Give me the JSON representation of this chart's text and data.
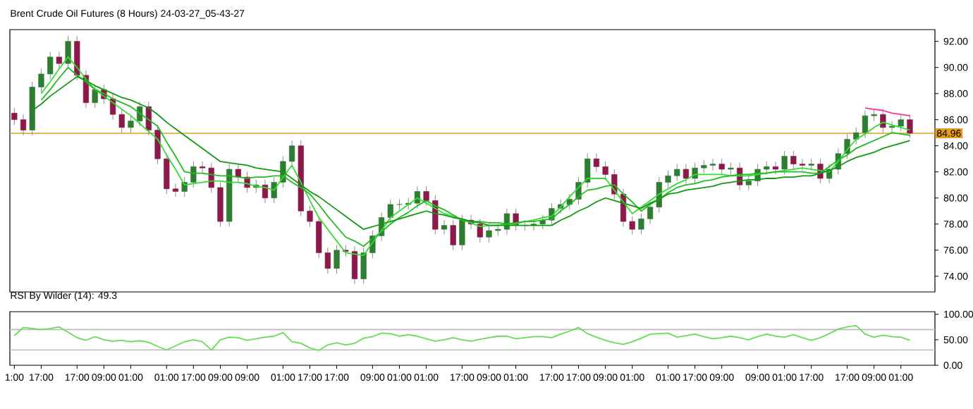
{
  "chart_data": [
    {
      "type": "candlestick",
      "title": "Brent Crude Oil Futures (8 Hours) 24-03-27_05-43-27",
      "categories": [
        null,
        null,
        null,
        null,
        null,
        null,
        null,
        null,
        null,
        null,
        null,
        null,
        null,
        null,
        null,
        null,
        null,
        null,
        null,
        null,
        null,
        null,
        null,
        null,
        null,
        null,
        null,
        null,
        null,
        null,
        null,
        null,
        null,
        null,
        null,
        null,
        null,
        null,
        null,
        null,
        null,
        null,
        null,
        null,
        null,
        null,
        null,
        null,
        null,
        null,
        null,
        null,
        null,
        null,
        null,
        null,
        null,
        null,
        null,
        null,
        null,
        null,
        null,
        null,
        null,
        null,
        null,
        null,
        null,
        null,
        null,
        null,
        null,
        null,
        null,
        null,
        null,
        null,
        null,
        null,
        null,
        null,
        null,
        null,
        null,
        null,
        null,
        null,
        null,
        null,
        null,
        null,
        null,
        null,
        null,
        null,
        null,
        null,
        null,
        null,
        null
      ],
      "ylim": [
        72.8,
        92.9
      ],
      "tick_labels": "y",
      "yticks": [
        {
          "value": 74,
          "label": "74.00"
        },
        {
          "value": 76,
          "label": "76.00"
        },
        {
          "value": 78,
          "label": "78.00"
        },
        {
          "value": 80,
          "label": "80.00"
        },
        {
          "value": 82,
          "label": "82.00"
        },
        {
          "value": 84,
          "label": "84.00"
        },
        {
          "value": 86,
          "label": "86.00"
        },
        {
          "value": 88,
          "label": "88.00"
        },
        {
          "value": 90,
          "label": "90.00"
        },
        {
          "value": 92,
          "label": "92.00"
        }
      ],
      "ref_lines": [
        {
          "axis": "y",
          "value": 84.96,
          "label": "84.96",
          "color": "#e69c1a"
        }
      ],
      "series": [
        {
          "type": "candlestick",
          "ohlc": [
            [
              86.5,
              86.9,
              85.6,
              86.0
            ],
            [
              86.0,
              86.4,
              84.8,
              85.2
            ],
            [
              85.2,
              88.9,
              84.8,
              88.5
            ],
            [
              88.5,
              89.9,
              88.1,
              89.5
            ],
            [
              89.5,
              91.2,
              89.1,
              90.8
            ],
            [
              90.8,
              91.2,
              89.9,
              90.3
            ],
            [
              90.3,
              92.4,
              89.9,
              92.0
            ],
            [
              92.0,
              92.4,
              89.0,
              89.4
            ],
            [
              89.4,
              89.8,
              86.9,
              87.3
            ],
            [
              87.3,
              88.7,
              86.9,
              88.3
            ],
            [
              88.3,
              88.7,
              87.2,
              87.6
            ],
            [
              87.6,
              88.0,
              86.0,
              86.4
            ],
            [
              86.4,
              86.8,
              85.0,
              85.4
            ],
            [
              85.4,
              86.3,
              85.0,
              85.9
            ],
            [
              85.9,
              87.4,
              85.5,
              87.0
            ],
            [
              87.0,
              87.4,
              84.8,
              85.2
            ],
            [
              85.2,
              85.6,
              82.6,
              83.0
            ],
            [
              83.0,
              83.4,
              80.3,
              80.7
            ],
            [
              80.7,
              81.1,
              80.1,
              80.5
            ],
            [
              80.5,
              81.6,
              80.1,
              81.2
            ],
            [
              81.2,
              82.8,
              80.8,
              82.4
            ],
            [
              82.4,
              82.8,
              81.9,
              82.3
            ],
            [
              82.3,
              82.7,
              80.4,
              80.8
            ],
            [
              80.8,
              81.2,
              77.8,
              78.2
            ],
            [
              78.2,
              82.6,
              77.8,
              82.2
            ],
            [
              82.2,
              82.6,
              81.2,
              81.6
            ],
            [
              81.6,
              82.0,
              80.4,
              80.8
            ],
            [
              80.8,
              81.4,
              80.4,
              81.0
            ],
            [
              81.0,
              81.4,
              79.6,
              80.0
            ],
            [
              80.0,
              81.6,
              79.6,
              81.2
            ],
            [
              81.2,
              83.2,
              80.8,
              82.8
            ],
            [
              82.8,
              84.4,
              82.4,
              84.0
            ],
            [
              84.0,
              84.4,
              78.6,
              79.0
            ],
            [
              79.0,
              79.4,
              77.8,
              78.2
            ],
            [
              78.2,
              78.6,
              75.4,
              75.8
            ],
            [
              75.8,
              76.2,
              74.2,
              74.6
            ],
            [
              74.6,
              76.4,
              74.2,
              76.0
            ],
            [
              76.0,
              76.4,
              75.5,
              75.9
            ],
            [
              75.9,
              76.3,
              73.4,
              73.8
            ],
            [
              73.8,
              76.2,
              73.4,
              75.8
            ],
            [
              75.8,
              77.5,
              75.4,
              77.1
            ],
            [
              77.1,
              78.9,
              76.7,
              78.5
            ],
            [
              78.5,
              79.9,
              78.1,
              79.5
            ],
            [
              79.5,
              79.9,
              79.1,
              79.5
            ],
            [
              79.5,
              80.0,
              79.1,
              79.6
            ],
            [
              79.6,
              80.9,
              79.2,
              80.5
            ],
            [
              80.5,
              80.9,
              79.4,
              79.8
            ],
            [
              79.8,
              80.2,
              77.2,
              77.6
            ],
            [
              77.6,
              78.3,
              77.2,
              77.9
            ],
            [
              77.9,
              78.3,
              76.0,
              76.4
            ],
            [
              76.4,
              78.7,
              76.0,
              78.3
            ],
            [
              78.3,
              78.7,
              77.6,
              78.0
            ],
            [
              78.0,
              78.4,
              76.6,
              77.0
            ],
            [
              77.0,
              77.9,
              76.6,
              77.5
            ],
            [
              77.5,
              78.0,
              77.1,
              77.6
            ],
            [
              77.6,
              79.2,
              77.2,
              78.8
            ],
            [
              78.8,
              79.2,
              77.5,
              77.9
            ],
            [
              77.9,
              78.3,
              77.5,
              77.9
            ],
            [
              77.9,
              78.4,
              77.5,
              78.0
            ],
            [
              78.0,
              78.7,
              77.6,
              78.3
            ],
            [
              78.3,
              79.6,
              77.9,
              79.2
            ],
            [
              79.2,
              79.9,
              78.8,
              79.5
            ],
            [
              79.5,
              80.3,
              79.1,
              79.9
            ],
            [
              79.9,
              81.6,
              79.5,
              81.2
            ],
            [
              81.2,
              83.4,
              80.8,
              83.0
            ],
            [
              83.0,
              83.4,
              82.0,
              82.4
            ],
            [
              82.4,
              82.8,
              81.4,
              81.8
            ],
            [
              81.8,
              82.2,
              79.9,
              80.3
            ],
            [
              80.3,
              80.7,
              77.8,
              78.2
            ],
            [
              78.2,
              78.6,
              77.2,
              77.6
            ],
            [
              77.6,
              78.8,
              77.2,
              78.4
            ],
            [
              78.4,
              79.7,
              78.0,
              79.3
            ],
            [
              79.3,
              81.6,
              78.9,
              81.2
            ],
            [
              81.2,
              82.1,
              80.8,
              81.7
            ],
            [
              81.7,
              82.6,
              81.3,
              82.2
            ],
            [
              82.2,
              82.6,
              81.1,
              81.5
            ],
            [
              81.5,
              82.7,
              81.1,
              82.3
            ],
            [
              82.3,
              82.9,
              81.9,
              82.5
            ],
            [
              82.5,
              83.0,
              82.1,
              82.6
            ],
            [
              82.6,
              83.0,
              81.8,
              82.2
            ],
            [
              82.2,
              82.7,
              81.8,
              82.3
            ],
            [
              82.3,
              82.7,
              80.6,
              81.0
            ],
            [
              81.0,
              81.7,
              80.6,
              81.3
            ],
            [
              81.3,
              82.6,
              80.9,
              82.2
            ],
            [
              82.2,
              82.8,
              81.8,
              82.4
            ],
            [
              82.4,
              82.8,
              81.8,
              82.2
            ],
            [
              82.2,
              83.6,
              81.8,
              83.2
            ],
            [
              83.2,
              83.6,
              82.2,
              82.6
            ],
            [
              82.6,
              83.0,
              82.1,
              82.5
            ],
            [
              82.5,
              83.0,
              82.1,
              82.6
            ],
            [
              82.6,
              83.0,
              81.1,
              81.5
            ],
            [
              81.5,
              82.6,
              81.1,
              82.2
            ],
            [
              82.2,
              83.8,
              81.8,
              83.4
            ],
            [
              83.4,
              84.9,
              83.0,
              84.5
            ],
            [
              84.5,
              85.4,
              84.1,
              85.0
            ],
            [
              85.0,
              86.7,
              84.6,
              86.3
            ],
            [
              86.3,
              86.8,
              85.9,
              86.4
            ],
            [
              86.4,
              86.8,
              85.0,
              85.4
            ],
            [
              85.4,
              85.9,
              85.0,
              85.5
            ],
            [
              85.5,
              86.4,
              85.1,
              86.0
            ],
            [
              86.0,
              86.4,
              84.6,
              84.96
            ]
          ],
          "colors": [
            "#8b1a4a",
            "#8b1a4a",
            "#2e7d32",
            "#2e7d32",
            "#2e7d32",
            "#8b1a4a",
            "#2e7d32",
            "#8b1a4a",
            "#8b1a4a",
            "#2e7d32",
            "#8b1a4a",
            "#8b1a4a",
            "#8b1a4a",
            "#2e7d32",
            "#2e7d32",
            "#8b1a4a",
            "#8b1a4a",
            "#8b1a4a",
            "#8b1a4a",
            "#2e7d32",
            "#2e7d32",
            "#8b1a4a",
            "#8b1a4a",
            "#8b1a4a",
            "#2e7d32",
            "#8b1a4a",
            "#8b1a4a",
            "#2e7d32",
            "#8b1a4a",
            "#2e7d32",
            "#2e7d32",
            "#2e7d32",
            "#8b1a4a",
            "#8b1a4a",
            "#8b1a4a",
            "#8b1a4a",
            "#2e7d32",
            "#8b1a4a",
            "#8b1a4a",
            "#2e7d32",
            "#2e7d32",
            "#2e7d32",
            "#2e7d32",
            "#2e7d32",
            "#2e7d32",
            "#2e7d32",
            "#8b1a4a",
            "#8b1a4a",
            "#2e7d32",
            "#8b1a4a",
            "#2e7d32",
            "#8b1a4a",
            "#8b1a4a",
            "#2e7d32",
            "#2e7d32",
            "#2e7d32",
            "#8b1a4a",
            "#2e7d32",
            "#2e7d32",
            "#2e7d32",
            "#2e7d32",
            "#2e7d32",
            "#2e7d32",
            "#2e7d32",
            "#2e7d32",
            "#8b1a4a",
            "#8b1a4a",
            "#8b1a4a",
            "#8b1a4a",
            "#8b1a4a",
            "#2e7d32",
            "#2e7d32",
            "#2e7d32",
            "#2e7d32",
            "#2e7d32",
            "#8b1a4a",
            "#2e7d32",
            "#2e7d32",
            "#2e7d32",
            "#8b1a4a",
            "#2e7d32",
            "#8b1a4a",
            "#2e7d32",
            "#2e7d32",
            "#2e7d32",
            "#8b1a4a",
            "#2e7d32",
            "#8b1a4a",
            "#8b1a4a",
            "#2e7d32",
            "#8b1a4a",
            "#2e7d32",
            "#2e7d32",
            "#2e7d32",
            "#2e7d32",
            "#2e7d32",
            "#2e7d32",
            "#8b1a4a",
            "#2e7d32",
            "#2e7d32",
            "#8b1a4a"
          ]
        },
        {
          "type": "line",
          "color": "#33dd33",
          "values": [
            null,
            null,
            null,
            88.0,
            88.9,
            89.9,
            90.8,
            90.0,
            89.1,
            88.3,
            87.8,
            87.3,
            86.8,
            86.3,
            85.7,
            85.1,
            84.5,
            83.3,
            82.2,
            81.0,
            81.1,
            81.2,
            81.3,
            81.3,
            81.2,
            81.2,
            81.1,
            80.9,
            80.8,
            80.6,
            81.6,
            82.5,
            81.2,
            79.8,
            78.5,
            77.6,
            76.7,
            75.8,
            75.7,
            75.6,
            76.6,
            77.5,
            78.5,
            79.0,
            79.5,
            80.0,
            79.6,
            79.2,
            78.8,
            78.6,
            78.3,
            78.1,
            77.8,
            77.9,
            77.9,
            78.0,
            78.0,
            78.2,
            78.3,
            78.5,
            78.6,
            79.3,
            80.1,
            80.8,
            81.5,
            81.5,
            81.5,
            80.6,
            79.7,
            78.8,
            79.3,
            79.8,
            80.3,
            80.7,
            81.1,
            81.4,
            81.8,
            81.8,
            81.8,
            81.8,
            81.7,
            81.7,
            81.7,
            81.8,
            81.9,
            82.0,
            82.1,
            82.2,
            82.3,
            82.2,
            82.1,
            82.0,
            82.8,
            83.7,
            84.5,
            84.9,
            85.4,
            85.8,
            85.6,
            85.4,
            85.2
          ]
        },
        {
          "type": "line",
          "color": "#22bb22",
          "values": [
            null,
            null,
            null,
            87.5,
            88.3,
            89.2,
            90.0,
            89.4,
            88.9,
            88.3,
            88.0,
            87.6,
            87.3,
            87.0,
            86.5,
            86.0,
            85.5,
            84.3,
            83.2,
            82.0,
            81.9,
            81.9,
            81.8,
            81.7,
            81.7,
            81.6,
            81.5,
            81.6,
            81.6,
            81.7,
            81.7,
            81.2,
            80.8,
            80.3,
            79.5,
            78.6,
            77.8,
            77.0,
            76.7,
            76.3,
            76.9,
            77.4,
            78.0,
            78.5,
            78.9,
            79.4,
            79.8,
            79.4,
            79.1,
            78.7,
            78.3,
            78.2,
            78.2,
            78.1,
            78.1,
            78.0,
            78.1,
            78.2,
            78.2,
            78.3,
            78.4,
            79.0,
            79.5,
            80.1,
            80.6,
            80.7,
            80.9,
            81.0,
            80.3,
            79.7,
            79.0,
            79.5,
            79.9,
            80.4,
            80.8,
            81.0,
            81.1,
            81.3,
            81.4,
            81.6,
            81.7,
            81.8,
            81.8,
            81.9,
            81.9,
            82.0,
            82.0,
            82.0,
            82.0,
            81.9,
            81.9,
            82.4,
            82.9,
            83.3,
            83.8,
            84.1,
            84.4,
            84.7,
            85.0,
            84.9,
            84.8
          ]
        },
        {
          "type": "line",
          "color": "#119911",
          "values": [
            null,
            null,
            86.7,
            87.2,
            87.8,
            88.3,
            88.8,
            89.3,
            89.0,
            88.6,
            88.3,
            88.0,
            87.7,
            87.5,
            87.2,
            86.9,
            86.4,
            85.8,
            85.3,
            84.8,
            84.3,
            83.8,
            83.3,
            82.8,
            82.7,
            82.6,
            82.5,
            82.3,
            82.2,
            82.1,
            82.0,
            81.5,
            81.0,
            80.5,
            80.1,
            79.6,
            79.1,
            78.6,
            78.1,
            77.6,
            77.8,
            78.0,
            78.2,
            78.4,
            78.6,
            78.8,
            79.0,
            78.8,
            78.7,
            78.5,
            78.4,
            78.2,
            78.1,
            77.9,
            77.9,
            77.9,
            77.9,
            77.9,
            77.9,
            77.9,
            77.9,
            78.3,
            78.6,
            79.0,
            79.3,
            79.7,
            80.0,
            79.8,
            79.6,
            79.4,
            79.2,
            79.6,
            79.9,
            80.3,
            80.4,
            80.6,
            80.7,
            80.8,
            80.9,
            81.1,
            81.2,
            81.3,
            81.4,
            81.4,
            81.5,
            81.5,
            81.6,
            81.6,
            81.7,
            81.7,
            81.9,
            82.1,
            82.4,
            82.8,
            83.1,
            83.3,
            83.5,
            83.8,
            84.0,
            84.2,
            84.4
          ]
        },
        {
          "type": "line",
          "color": "#ff3399",
          "values": [
            null,
            null,
            null,
            null,
            null,
            null,
            null,
            null,
            null,
            null,
            null,
            null,
            null,
            null,
            null,
            null,
            null,
            null,
            null,
            null,
            null,
            null,
            null,
            null,
            null,
            null,
            null,
            null,
            null,
            null,
            null,
            null,
            null,
            null,
            null,
            null,
            null,
            null,
            null,
            null,
            null,
            null,
            null,
            null,
            null,
            null,
            null,
            null,
            null,
            null,
            null,
            null,
            null,
            null,
            null,
            null,
            null,
            null,
            null,
            null,
            null,
            null,
            null,
            null,
            null,
            null,
            null,
            null,
            null,
            null,
            null,
            null,
            null,
            null,
            null,
            null,
            null,
            null,
            null,
            null,
            null,
            null,
            null,
            null,
            null,
            null,
            null,
            null,
            null,
            null,
            null,
            null,
            null,
            null,
            null,
            86.9,
            86.8,
            86.7,
            86.5,
            86.4,
            86.3
          ]
        }
      ]
    },
    {
      "type": "line",
      "title": "RSI By Wilder (14): 49.3",
      "categories": [
        "1:00",
        null,
        null,
        "17:00",
        null,
        null,
        null,
        "17:00",
        null,
        null,
        "09:00",
        null,
        null,
        "01:00",
        null,
        null,
        null,
        "01:00",
        null,
        null,
        "17:00",
        null,
        null,
        "09:00",
        null,
        null,
        "09:00",
        null,
        null,
        null,
        "01:00",
        null,
        null,
        "17:00",
        null,
        null,
        "17:00",
        null,
        null,
        null,
        "09:00",
        null,
        null,
        "01:00",
        null,
        null,
        "01:00",
        null,
        null,
        null,
        "17:00",
        null,
        null,
        "09:00",
        null,
        null,
        "01:00",
        null,
        null,
        null,
        "17:00",
        null,
        null,
        "17:00",
        null,
        null,
        "09:00",
        null,
        null,
        "01:00",
        null,
        null,
        null,
        "01:00",
        null,
        null,
        "17:00",
        null,
        null,
        "09:00",
        null,
        null,
        null,
        "09:00",
        null,
        null,
        "01:00",
        null,
        null,
        "17:00",
        null,
        null,
        null,
        "17:00",
        null,
        null,
        "09:00",
        null,
        null,
        "01:00",
        null
      ],
      "ylim": [
        0,
        105
      ],
      "yticks": [
        {
          "value": 0,
          "label": "0.00"
        },
        {
          "value": 50,
          "label": "50.00"
        },
        {
          "value": 100,
          "label": "100.00"
        }
      ],
      "ref_lines": [
        {
          "axis": "y",
          "value": 70,
          "color": "#bbbbbb"
        },
        {
          "axis": "y",
          "value": 30,
          "color": "#bbbbbb"
        }
      ],
      "series": [
        {
          "color": "#66dd55",
          "values": [
            58,
            74,
            72,
            70,
            72,
            75,
            65,
            54,
            49,
            56,
            50,
            47,
            49,
            46,
            48,
            45,
            37,
            30,
            38,
            46,
            50,
            46,
            30,
            50,
            55,
            54,
            49,
            52,
            55,
            57,
            64,
            46,
            43,
            34,
            29,
            40,
            44,
            40,
            43,
            53,
            56,
            63,
            62,
            57,
            60,
            57,
            52,
            47,
            50,
            54,
            50,
            47,
            51,
            54,
            57,
            57,
            52,
            54,
            56,
            56,
            54,
            61,
            67,
            74,
            62,
            55,
            49,
            44,
            41,
            46,
            53,
            61,
            62,
            63,
            55,
            58,
            61,
            56,
            52,
            54,
            57,
            54,
            50,
            56,
            61,
            57,
            55,
            60,
            54,
            49,
            54,
            62,
            71,
            75,
            78,
            61,
            55,
            59,
            56,
            55,
            49
          ]
        }
      ]
    }
  ]
}
